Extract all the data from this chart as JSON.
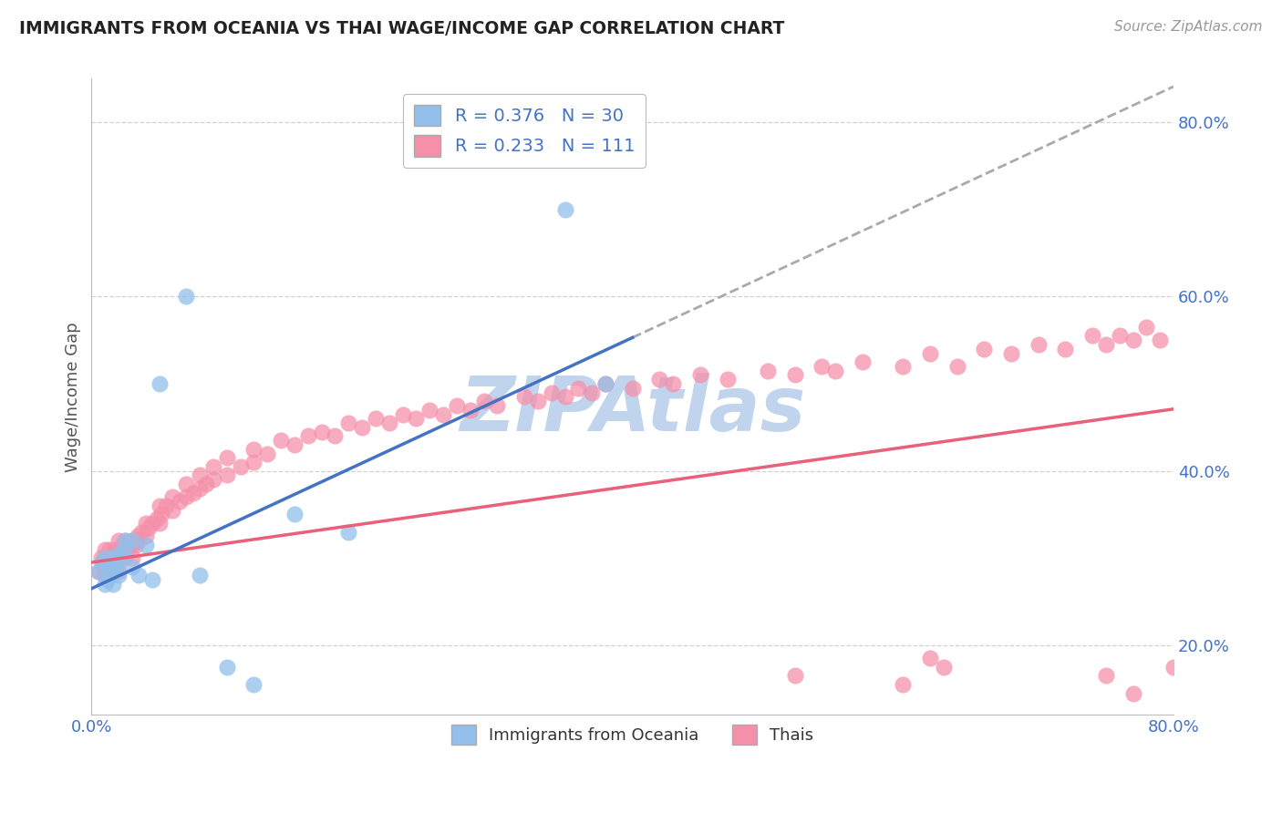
{
  "title": "IMMIGRANTS FROM OCEANIA VS THAI WAGE/INCOME GAP CORRELATION CHART",
  "source": "Source: ZipAtlas.com",
  "ylabel": "Wage/Income Gap",
  "xlim": [
    0.0,
    0.8
  ],
  "ylim": [
    0.12,
    0.85
  ],
  "yticks": [
    0.2,
    0.4,
    0.6,
    0.8
  ],
  "yticklabels": [
    "20.0%",
    "40.0%",
    "60.0%",
    "80.0%"
  ],
  "blue_R": 0.376,
  "blue_N": 30,
  "pink_R": 0.233,
  "pink_N": 111,
  "blue_color": "#92C0EA",
  "pink_color": "#F590AA",
  "blue_line_color": "#4472C4",
  "pink_line_color": "#E8607A",
  "gray_dash_color": "#AAAAAA",
  "legend_label_blue": "Immigrants from Oceania",
  "legend_label_pink": "Thais",
  "watermark": "ZIPAtlas",
  "watermark_color": "#C0D4EE",
  "background_color": "#FFFFFF",
  "grid_color": "#CCCCCC",
  "tick_color": "#4472C4",
  "title_color": "#222222",
  "source_color": "#999999",
  "ylabel_color": "#555555",
  "blue_x": [
    0.005,
    0.008,
    0.01,
    0.01,
    0.012,
    0.013,
    0.015,
    0.015,
    0.016,
    0.017,
    0.018,
    0.02,
    0.02,
    0.022,
    0.025,
    0.025,
    0.03,
    0.03,
    0.035,
    0.04,
    0.045,
    0.05,
    0.07,
    0.08,
    0.1,
    0.12,
    0.15,
    0.19,
    0.35,
    0.38
  ],
  "blue_y": [
    0.285,
    0.295,
    0.27,
    0.3,
    0.275,
    0.29,
    0.285,
    0.3,
    0.27,
    0.29,
    0.29,
    0.28,
    0.305,
    0.3,
    0.31,
    0.32,
    0.29,
    0.32,
    0.28,
    0.315,
    0.275,
    0.5,
    0.6,
    0.28,
    0.175,
    0.155,
    0.35,
    0.33,
    0.7,
    0.5
  ],
  "pink_x": [
    0.005,
    0.007,
    0.008,
    0.01,
    0.01,
    0.01,
    0.012,
    0.013,
    0.014,
    0.015,
    0.015,
    0.016,
    0.017,
    0.018,
    0.02,
    0.02,
    0.02,
    0.022,
    0.023,
    0.025,
    0.025,
    0.026,
    0.027,
    0.03,
    0.03,
    0.03,
    0.032,
    0.033,
    0.034,
    0.035,
    0.037,
    0.04,
    0.04,
    0.042,
    0.045,
    0.048,
    0.05,
    0.05,
    0.052,
    0.055,
    0.06,
    0.06,
    0.065,
    0.07,
    0.07,
    0.075,
    0.08,
    0.08,
    0.085,
    0.09,
    0.09,
    0.1,
    0.1,
    0.11,
    0.12,
    0.12,
    0.13,
    0.14,
    0.15,
    0.16,
    0.17,
    0.18,
    0.19,
    0.2,
    0.21,
    0.22,
    0.23,
    0.24,
    0.25,
    0.26,
    0.27,
    0.28,
    0.29,
    0.3,
    0.32,
    0.33,
    0.34,
    0.35,
    0.36,
    0.37,
    0.38,
    0.4,
    0.42,
    0.43,
    0.45,
    0.47,
    0.5,
    0.52,
    0.54,
    0.55,
    0.57,
    0.6,
    0.62,
    0.64,
    0.66,
    0.68,
    0.7,
    0.72,
    0.74,
    0.75,
    0.76,
    0.77,
    0.78,
    0.79,
    0.8,
    0.52,
    0.6,
    0.62,
    0.63,
    0.75,
    0.77
  ],
  "pink_y": [
    0.285,
    0.3,
    0.295,
    0.28,
    0.295,
    0.31,
    0.29,
    0.31,
    0.3,
    0.285,
    0.3,
    0.295,
    0.31,
    0.3,
    0.285,
    0.3,
    0.32,
    0.31,
    0.315,
    0.3,
    0.32,
    0.31,
    0.315,
    0.3,
    0.315,
    0.32,
    0.32,
    0.315,
    0.325,
    0.32,
    0.33,
    0.325,
    0.34,
    0.335,
    0.34,
    0.345,
    0.34,
    0.36,
    0.35,
    0.36,
    0.355,
    0.37,
    0.365,
    0.37,
    0.385,
    0.375,
    0.38,
    0.395,
    0.385,
    0.39,
    0.405,
    0.395,
    0.415,
    0.405,
    0.41,
    0.425,
    0.42,
    0.435,
    0.43,
    0.44,
    0.445,
    0.44,
    0.455,
    0.45,
    0.46,
    0.455,
    0.465,
    0.46,
    0.47,
    0.465,
    0.475,
    0.47,
    0.48,
    0.475,
    0.485,
    0.48,
    0.49,
    0.485,
    0.495,
    0.49,
    0.5,
    0.495,
    0.505,
    0.5,
    0.51,
    0.505,
    0.515,
    0.51,
    0.52,
    0.515,
    0.525,
    0.52,
    0.535,
    0.52,
    0.54,
    0.535,
    0.545,
    0.54,
    0.555,
    0.545,
    0.555,
    0.55,
    0.565,
    0.55,
    0.175,
    0.165,
    0.155,
    0.185,
    0.175,
    0.165,
    0.145
  ]
}
